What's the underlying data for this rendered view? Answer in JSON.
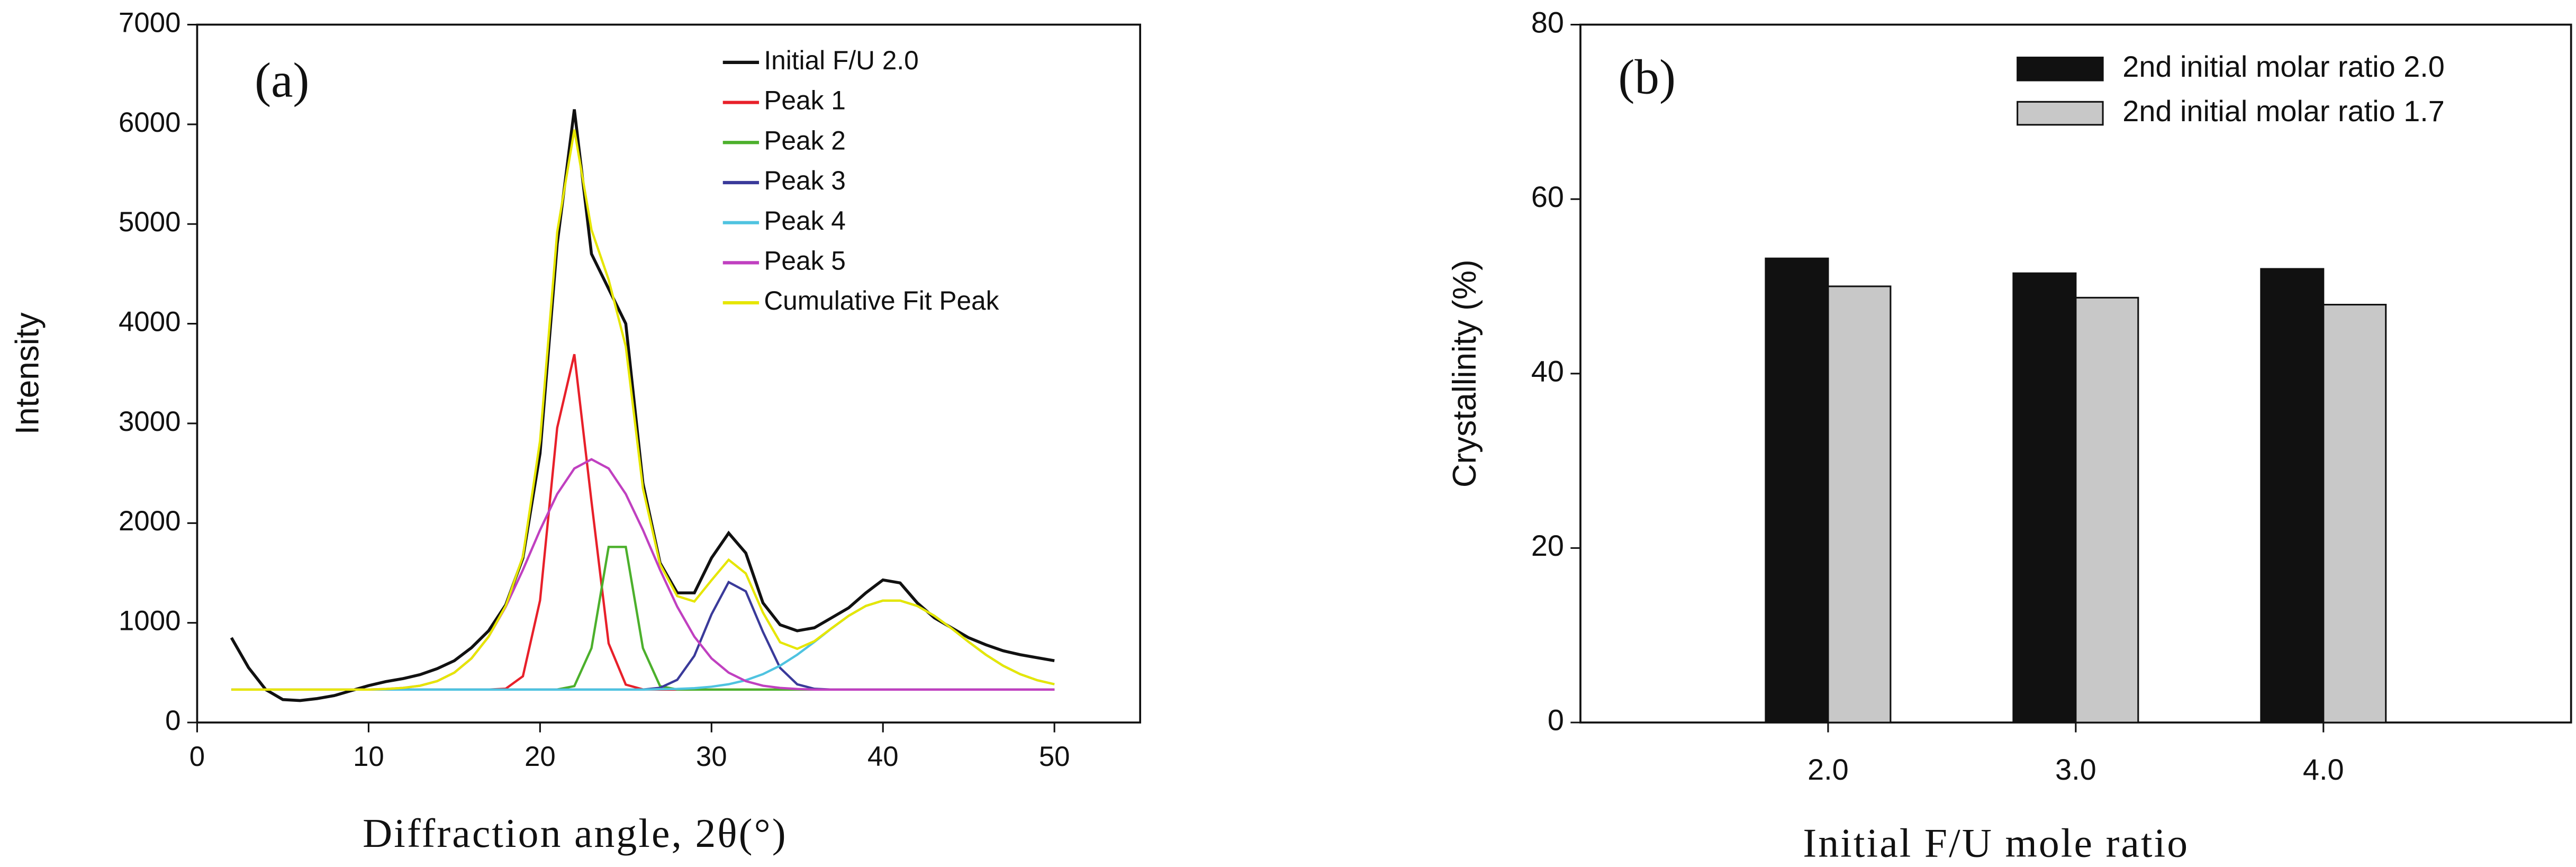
{
  "chart_data": [
    {
      "type": "line",
      "annotation": "(a)",
      "xlabel": "Diffraction angle, 2θ(°)",
      "ylabel": "Intensity",
      "x": [
        2,
        3,
        4,
        5,
        6,
        7,
        8,
        9,
        10,
        11,
        12,
        13,
        14,
        15,
        16,
        17,
        18,
        19,
        20,
        21,
        22,
        23,
        24,
        25,
        26,
        27,
        28,
        29,
        30,
        31,
        32,
        33,
        34,
        35,
        36,
        37,
        38,
        39,
        40,
        41,
        42,
        43,
        44,
        45,
        46,
        47,
        48,
        49,
        50
      ],
      "series": [
        {
          "name": "Initial F/U 2.0",
          "color": "#111111",
          "values": [
            850,
            550,
            330,
            230,
            220,
            240,
            270,
            320,
            370,
            410,
            440,
            480,
            540,
            620,
            750,
            920,
            1180,
            1650,
            2700,
            4800,
            6150,
            4700,
            4350,
            4000,
            2400,
            1600,
            1300,
            1300,
            1650,
            1900,
            1700,
            1200,
            980,
            920,
            950,
            1050,
            1150,
            1300,
            1430,
            1400,
            1200,
            1050,
            950,
            850,
            780,
            720,
            680,
            650,
            620
          ]
        },
        {
          "name": "Peak 1",
          "color": "#e8202a",
          "values": [
            330,
            330,
            330,
            330,
            330,
            330,
            330,
            330,
            330,
            330,
            330,
            330,
            330,
            330,
            330,
            330,
            339,
            464,
            1225,
            2956,
            3694,
            2216,
            793,
            380,
            332,
            330,
            330,
            330,
            330,
            330,
            330,
            330,
            330,
            330,
            330,
            330,
            330,
            330,
            330,
            330,
            330,
            330,
            330,
            330,
            330,
            330,
            330,
            330,
            330
          ]
        },
        {
          "name": "Peak 2",
          "color": "#4cb02c",
          "values": [
            330,
            330,
            330,
            330,
            330,
            330,
            330,
            330,
            330,
            330,
            330,
            330,
            330,
            330,
            330,
            330,
            330,
            330,
            330,
            331,
            365,
            746,
            1761,
            1761,
            746,
            365,
            331,
            330,
            330,
            330,
            330,
            330,
            330,
            330,
            330,
            330,
            330,
            330,
            330,
            330,
            330,
            330,
            330,
            330,
            330,
            330,
            330,
            330,
            330
          ]
        },
        {
          "name": "Peak 3",
          "color": "#3a3a9a",
          "values": [
            330,
            330,
            330,
            330,
            330,
            330,
            330,
            330,
            330,
            330,
            330,
            330,
            330,
            330,
            330,
            330,
            330,
            330,
            330,
            330,
            330,
            330,
            330,
            330,
            330,
            348,
            428,
            669,
            1085,
            1408,
            1316,
            909,
            548,
            383,
            338,
            330,
            330,
            330,
            330,
            330,
            330,
            330,
            330,
            330,
            330,
            330,
            330,
            330,
            330
          ]
        },
        {
          "name": "Peak 4",
          "color": "#4fc3e0",
          "values": [
            330,
            330,
            330,
            330,
            330,
            330,
            330,
            330,
            330,
            330,
            330,
            330,
            330,
            330,
            330,
            330,
            330,
            330,
            330,
            330,
            330,
            330,
            330,
            330,
            330,
            334,
            337,
            344,
            359,
            384,
            424,
            485,
            570,
            680,
            808,
            944,
            1070,
            1169,
            1223,
            1223,
            1169,
            1070,
            944,
            808,
            680,
            570,
            485,
            424,
            384
          ]
        },
        {
          "name": "Peak 5",
          "color": "#c040c0",
          "values": [
            330,
            330,
            330,
            330,
            330,
            330,
            330,
            330,
            330,
            336,
            347,
            369,
            415,
            500,
            643,
            861,
            1162,
            1531,
            1931,
            2292,
            2548,
            2640,
            2548,
            2292,
            1931,
            1531,
            1162,
            861,
            643,
            500,
            415,
            369,
            347,
            336,
            330,
            330,
            330,
            330,
            330,
            330,
            330,
            330,
            330,
            330,
            330,
            330,
            330,
            330,
            330
          ]
        },
        {
          "name": "Cumulative Fit Peak",
          "color": "#e6e600",
          "values": [
            330,
            330,
            330,
            330,
            330,
            330,
            330,
            330,
            330,
            336,
            347,
            369,
            415,
            500,
            643,
            861,
            1171,
            1665,
            2826,
            4919,
            5947,
            4942,
            4442,
            3773,
            2349,
            1588,
            1268,
            1214,
            1427,
            1632,
            1495,
            1103,
            805,
            739,
            816,
            945,
            1070,
            1169,
            1223,
            1223,
            1169,
            1070,
            944,
            808,
            680,
            570,
            485,
            424,
            384
          ]
        }
      ],
      "xlim": [
        0,
        55
      ],
      "xticks": [
        0,
        10,
        20,
        30,
        40,
        50
      ],
      "ylim": [
        0,
        7000
      ],
      "yticks": [
        0,
        1000,
        2000,
        3000,
        4000,
        5000,
        6000,
        7000
      ],
      "legend": "upper right"
    },
    {
      "type": "bar",
      "annotation": "(b)",
      "xlabel": "Initial F/U mole ratio",
      "ylabel": "Crystallinity (%)",
      "categories": [
        "2.0",
        "3.0",
        "4.0"
      ],
      "series": [
        {
          "name": "2nd initial molar ratio 2.0",
          "color": "#111111",
          "values": [
            53.2,
            51.5,
            52.0
          ]
        },
        {
          "name": "2nd initial molar ratio 1.7",
          "color": "#c8c8c8",
          "values": [
            50.0,
            48.7,
            47.9
          ]
        }
      ],
      "ylim": [
        0,
        80
      ],
      "yticks": [
        0,
        20,
        40,
        60,
        80
      ],
      "legend": "upper right"
    }
  ]
}
